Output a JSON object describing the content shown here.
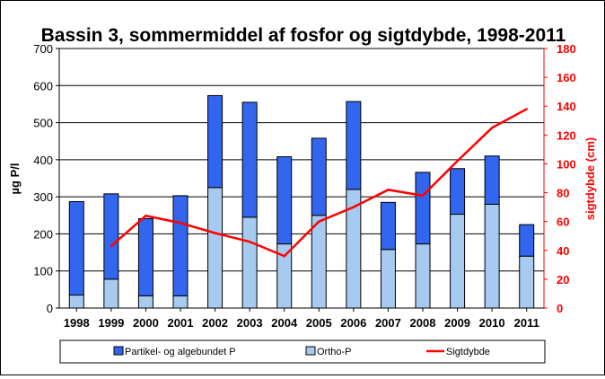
{
  "chart_data": {
    "type": "bar",
    "title": "Bassin 3, sommermiddel af fosfor og sigtdybde, 1998-2011",
    "categories": [
      "1998",
      "1999",
      "2000",
      "2001",
      "2002",
      "2003",
      "2004",
      "2005",
      "2006",
      "2007",
      "2008",
      "2009",
      "2010",
      "2011"
    ],
    "ylabel": "µg P/l",
    "y2label": "sigtdybde (cm)",
    "ylim": [
      0,
      700
    ],
    "y2lim": [
      0,
      180
    ],
    "yticks": [
      "0",
      "100",
      "200",
      "300",
      "400",
      "500",
      "600",
      "700"
    ],
    "y2ticks": [
      "0",
      "20",
      "40",
      "60",
      "80",
      "100",
      "120",
      "140",
      "160",
      "180"
    ],
    "stacked": true,
    "series": [
      {
        "name": "Ortho-P",
        "kind": "bar",
        "color": "#a6caf0",
        "values": [
          35,
          78,
          33,
          33,
          325,
          245,
          173,
          250,
          320,
          158,
          173,
          253,
          280,
          140
        ]
      },
      {
        "name": "Partikel- og algebundet P",
        "kind": "bar",
        "color": "#3366ee",
        "values": [
          252,
          230,
          208,
          270,
          248,
          310,
          235,
          208,
          237,
          127,
          193,
          123,
          130,
          85
        ]
      },
      {
        "name": "Sigtdybde",
        "kind": "line",
        "axis": "y2",
        "color": "#ff0000",
        "values": [
          null,
          43,
          64,
          59,
          52,
          46,
          36,
          60,
          70,
          82,
          78,
          102,
          125,
          138
        ]
      }
    ],
    "legend": {
      "position": "bottom",
      "order": [
        "Partikel- og algebundet P",
        "Ortho-P",
        "Sigtdybde"
      ]
    }
  }
}
